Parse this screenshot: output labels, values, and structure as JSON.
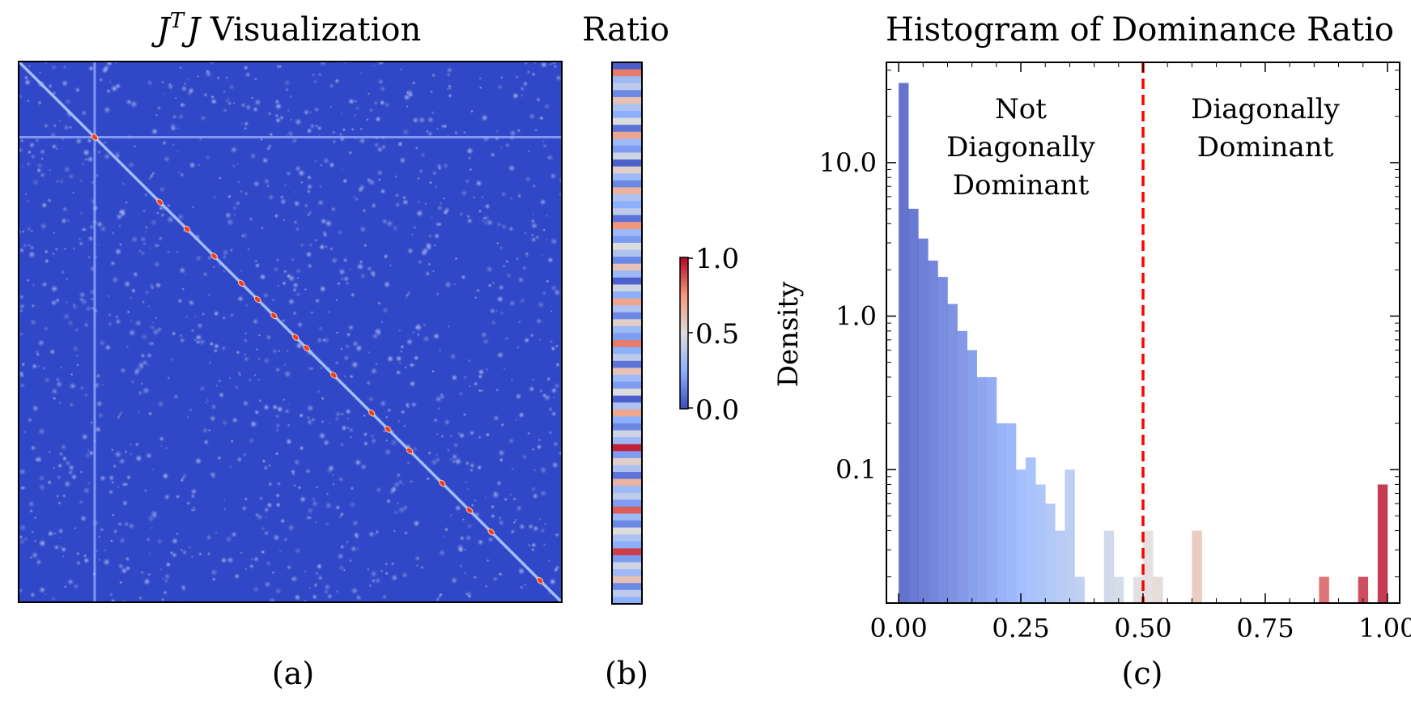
{
  "panels": {
    "a": {
      "title_main": "J",
      "title_sup": "T",
      "title_after": "J",
      "title_suffix": " Visualization",
      "caption": "(a)"
    },
    "b": {
      "title": "Ratio",
      "caption": "(b)"
    },
    "c": {
      "caption": "(c)"
    }
  },
  "colorbar": {
    "ticks": [
      "1.0",
      "0.5",
      "0.0"
    ]
  },
  "colors": {
    "background": "#3b4cc0",
    "histogram_low": "#3b4cc0",
    "histogram_mid": "#dddcdc",
    "histogram_high": "#b40426",
    "threshold_line": "#ff0000"
  },
  "chart_data": [
    {
      "type": "heatmap",
      "title": "J^T J Visualization",
      "description_values": "N x N matrix, near-zero off-diagonal with strong diagonal peaks",
      "diagonal_peaks": [
        0.14,
        0.26,
        0.31,
        0.36,
        0.41,
        0.44,
        0.47,
        0.51,
        0.53,
        0.58,
        0.65,
        0.68,
        0.72,
        0.78,
        0.83,
        0.87,
        0.96
      ],
      "bright_row": 0.14,
      "bright_col": 0.14,
      "colormap": "coolwarm",
      "range": [
        0,
        1
      ]
    },
    {
      "type": "heatmap",
      "title": "Ratio",
      "colormap": "coolwarm",
      "range": [
        0,
        1
      ],
      "ticks": [
        0.0,
        0.5,
        1.0
      ],
      "stripes": [
        0.05,
        0.8,
        0.3,
        0.4,
        0.15,
        0.6,
        0.35,
        0.25,
        0.5,
        0.1,
        0.7,
        0.3,
        0.2,
        0.45,
        0.05,
        0.55,
        0.3,
        0.15,
        0.65,
        0.35,
        0.25,
        0.4,
        0.1,
        0.75,
        0.3,
        0.2,
        0.5,
        0.35,
        0.15,
        0.6,
        0.3,
        0.05,
        0.45,
        0.25,
        0.7,
        0.35,
        0.15,
        0.55,
        0.3,
        0.2,
        0.8,
        0.25,
        0.4,
        0.1,
        0.6,
        0.3,
        0.2,
        0.5,
        0.05,
        0.35,
        0.7,
        0.25,
        0.15,
        0.45,
        0.3,
        0.95,
        0.2,
        0.55,
        0.35,
        0.1,
        0.65,
        0.3,
        0.4,
        0.2,
        0.85,
        0.3,
        0.15,
        0.5,
        0.35,
        0.25,
        0.9,
        0.2,
        0.45,
        0.3,
        0.6,
        0.15,
        0.4,
        0.25
      ]
    },
    {
      "type": "bar",
      "title": "Histogram of Dominance Ratio",
      "xlabel": "",
      "ylabel": "Density",
      "yscale": "log",
      "xlim": [
        -0.025,
        1.025
      ],
      "ylim": [
        0.0135,
        45
      ],
      "xticks": [
        "0.00",
        "0.25",
        "0.50",
        "0.75",
        "1.00"
      ],
      "yticks": [
        "0.1",
        "1.0",
        "10.0"
      ],
      "bin_width": 0.02,
      "bins": [
        {
          "x": 0.0,
          "y": 33.0
        },
        {
          "x": 0.02,
          "y": 5.0
        },
        {
          "x": 0.04,
          "y": 3.2
        },
        {
          "x": 0.06,
          "y": 2.3
        },
        {
          "x": 0.08,
          "y": 1.8
        },
        {
          "x": 0.1,
          "y": 1.2
        },
        {
          "x": 0.12,
          "y": 0.8
        },
        {
          "x": 0.14,
          "y": 0.6
        },
        {
          "x": 0.16,
          "y": 0.4
        },
        {
          "x": 0.18,
          "y": 0.4
        },
        {
          "x": 0.2,
          "y": 0.2
        },
        {
          "x": 0.22,
          "y": 0.2
        },
        {
          "x": 0.24,
          "y": 0.1
        },
        {
          "x": 0.26,
          "y": 0.12
        },
        {
          "x": 0.28,
          "y": 0.08
        },
        {
          "x": 0.3,
          "y": 0.06
        },
        {
          "x": 0.32,
          "y": 0.04
        },
        {
          "x": 0.34,
          "y": 0.1
        },
        {
          "x": 0.36,
          "y": 0.02
        },
        {
          "x": 0.42,
          "y": 0.04
        },
        {
          "x": 0.44,
          "y": 0.02
        },
        {
          "x": 0.48,
          "y": 0.02
        },
        {
          "x": 0.5,
          "y": 0.04
        },
        {
          "x": 0.52,
          "y": 0.02
        },
        {
          "x": 0.6,
          "y": 0.04
        },
        {
          "x": 0.86,
          "y": 0.02
        },
        {
          "x": 0.94,
          "y": 0.02
        },
        {
          "x": 0.98,
          "y": 0.08
        }
      ],
      "threshold": 0.5,
      "annotations": [
        {
          "lines": [
            "Not",
            "Diagonally",
            "Dominant"
          ],
          "x": 0.25
        },
        {
          "lines": [
            "Diagonally",
            "Dominant"
          ],
          "x": 0.75
        }
      ]
    }
  ]
}
